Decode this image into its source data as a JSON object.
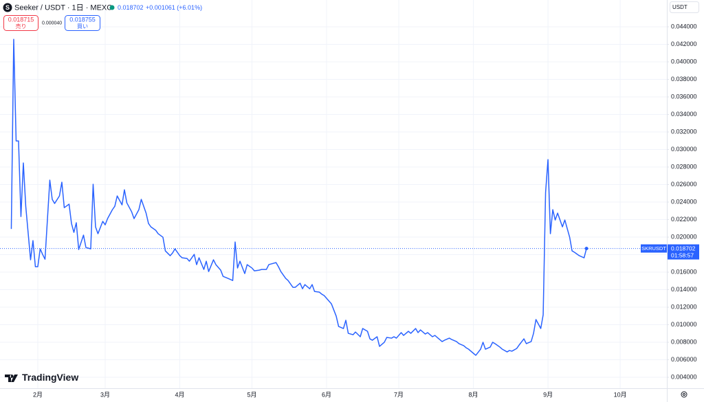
{
  "header": {
    "symbol": "Seeker / USDT · 1日 · MEXC",
    "change": "+0.001061 (+6.01%)",
    "sell_price": "0.018715",
    "sell_label": "売り",
    "spread": "0.000040",
    "buy_price": "0.018755",
    "buy_label": "買い",
    "currency": "USDT",
    "countdown": "01:58:57",
    "brand": "TradingView"
  },
  "chart_data": {
    "type": "line",
    "x": [
      21,
      22,
      23,
      24,
      25,
      26,
      27,
      29,
      30,
      31,
      32,
      33,
      34,
      35,
      37,
      38,
      39,
      41,
      42,
      43,
      45,
      46,
      47,
      48,
      49,
      51,
      52,
      54,
      55,
      56,
      57,
      59,
      60,
      61,
      63,
      64,
      65,
      67,
      68,
      69,
      71,
      72,
      74,
      75,
      77,
      78,
      79,
      81,
      82,
      84,
      85,
      87,
      88,
      89,
      91,
      92,
      94,
      95,
      97,
      98,
      99,
      101,
      102,
      103,
      105,
      106,
      108,
      109,
      111,
      113,
      114,
      115,
      116,
      118,
      119,
      121,
      122,
      124,
      125,
      127,
      128,
      129,
      131,
      132,
      133,
      135,
      136,
      138,
      139,
      141,
      142,
      143,
      145,
      146,
      147,
      149,
      150,
      151,
      153,
      154,
      156,
      157,
      159,
      160,
      161,
      163,
      164,
      166,
      167,
      169,
      170,
      171,
      173,
      174,
      176,
      177,
      179,
      180,
      181,
      183,
      184,
      186,
      187,
      189,
      190,
      191,
      193,
      194,
      196,
      197,
      199,
      200,
      201,
      203,
      204,
      206,
      207,
      209,
      210,
      211,
      213,
      214,
      216,
      217,
      218,
      220,
      221,
      222,
      224,
      225,
      227,
      228,
      229,
      231,
      232,
      234,
      235,
      237,
      238,
      239,
      241,
      242,
      243,
      244,
      245,
      246,
      247,
      248,
      249,
      250,
      251,
      253,
      254,
      255,
      257,
      259,
      260
    ],
    "series": [
      {
        "name": "SKRUSDT",
        "color": "#2962ff",
        "values": [
          0.02093,
          0.04257,
          0.03097,
          0.03097,
          0.02235,
          0.02846,
          0.02352,
          0.01741,
          0.0196,
          0.01662,
          0.01662,
          0.01866,
          0.01803,
          0.01748,
          0.0265,
          0.02431,
          0.02384,
          0.0247,
          0.02627,
          0.02336,
          0.02376,
          0.02156,
          0.02054,
          0.02164,
          0.01858,
          0.02023,
          0.01882,
          0.01866,
          0.02603,
          0.02117,
          0.02039,
          0.0218,
          0.0214,
          0.02211,
          0.02313,
          0.02352,
          0.0247,
          0.02368,
          0.0254,
          0.02391,
          0.02289,
          0.02211,
          0.02313,
          0.02431,
          0.02274,
          0.02156,
          0.02117,
          0.02078,
          0.02039,
          0.01999,
          0.01843,
          0.01788,
          0.01819,
          0.01866,
          0.01788,
          0.01764,
          0.01756,
          0.01725,
          0.01803,
          0.01686,
          0.01764,
          0.01631,
          0.01725,
          0.01607,
          0.01741,
          0.01686,
          0.01623,
          0.01552,
          0.01529,
          0.01505,
          0.01944,
          0.01647,
          0.01725,
          0.01584,
          0.01686,
          0.01647,
          0.01615,
          0.01623,
          0.01631,
          0.01631,
          0.01686,
          0.01694,
          0.01709,
          0.01662,
          0.01607,
          0.01529,
          0.01505,
          0.01427,
          0.01427,
          0.01474,
          0.01411,
          0.01458,
          0.01411,
          0.01458,
          0.0138,
          0.01372,
          0.01349,
          0.01333,
          0.0127,
          0.01239,
          0.01098,
          0.0098,
          0.00957,
          0.01051,
          0.00902,
          0.00886,
          0.00917,
          0.00863,
          0.00957,
          0.00925,
          0.00839,
          0.00823,
          0.00863,
          0.00753,
          0.008,
          0.00855,
          0.00847,
          0.00863,
          0.00847,
          0.0091,
          0.00878,
          0.00925,
          0.00902,
          0.00957,
          0.0091,
          0.00941,
          0.00894,
          0.0091,
          0.00863,
          0.00878,
          0.00831,
          0.00808,
          0.00823,
          0.00847,
          0.00831,
          0.00808,
          0.00784,
          0.00761,
          0.00737,
          0.00721,
          0.00674,
          0.00651,
          0.00721,
          0.008,
          0.00721,
          0.00745,
          0.008,
          0.00784,
          0.00745,
          0.00721,
          0.0069,
          0.00706,
          0.00698,
          0.00729,
          0.00768,
          0.00839,
          0.00784,
          0.00808,
          0.00902,
          0.01059,
          0.00957,
          0.01113,
          0.02509,
          0.02885,
          0.02039,
          0.02313,
          0.02195,
          0.02274,
          0.02195,
          0.02117,
          0.02195,
          0.01999,
          0.01843,
          0.01827,
          0.01788,
          0.01764,
          0.018702
        ]
      }
    ],
    "xlim": [
      16.3,
      293.4
    ],
    "xticks": [
      {
        "value": 32,
        "label": "2月"
      },
      {
        "value": 60,
        "label": "3月"
      },
      {
        "value": 91,
        "label": "4月"
      },
      {
        "value": 121,
        "label": "5月"
      },
      {
        "value": 152,
        "label": "6月"
      },
      {
        "value": 182,
        "label": "7月"
      },
      {
        "value": 213,
        "label": "8月"
      },
      {
        "value": 244,
        "label": "9月"
      },
      {
        "value": 274,
        "label": "10月"
      }
    ],
    "ylim": [
      0.00275,
      0.04706
    ],
    "yticks": [
      {
        "value": 0.004,
        "label": "0.004000"
      },
      {
        "value": 0.006,
        "label": "0.006000"
      },
      {
        "value": 0.008,
        "label": "0.008000"
      },
      {
        "value": 0.01,
        "label": "0.010000"
      },
      {
        "value": 0.012,
        "label": "0.012000"
      },
      {
        "value": 0.014,
        "label": "0.014000"
      },
      {
        "value": 0.016,
        "label": "0.016000"
      },
      {
        "value": 0.018,
        "label": "0.018000"
      },
      {
        "value": 0.02,
        "label": "0.020000"
      },
      {
        "value": 0.022,
        "label": "0.022000"
      },
      {
        "value": 0.024,
        "label": "0.024000"
      },
      {
        "value": 0.026,
        "label": "0.026000"
      },
      {
        "value": 0.028,
        "label": "0.028000"
      },
      {
        "value": 0.03,
        "label": "0.030000"
      },
      {
        "value": 0.032,
        "label": "0.032000"
      },
      {
        "value": 0.034,
        "label": "0.034000"
      },
      {
        "value": 0.036,
        "label": "0.036000"
      },
      {
        "value": 0.038,
        "label": "0.038000"
      },
      {
        "value": 0.04,
        "label": "0.040000"
      },
      {
        "value": 0.042,
        "label": "0.042000"
      },
      {
        "value": 0.044,
        "label": "0.044000"
      }
    ],
    "grid": true
  }
}
